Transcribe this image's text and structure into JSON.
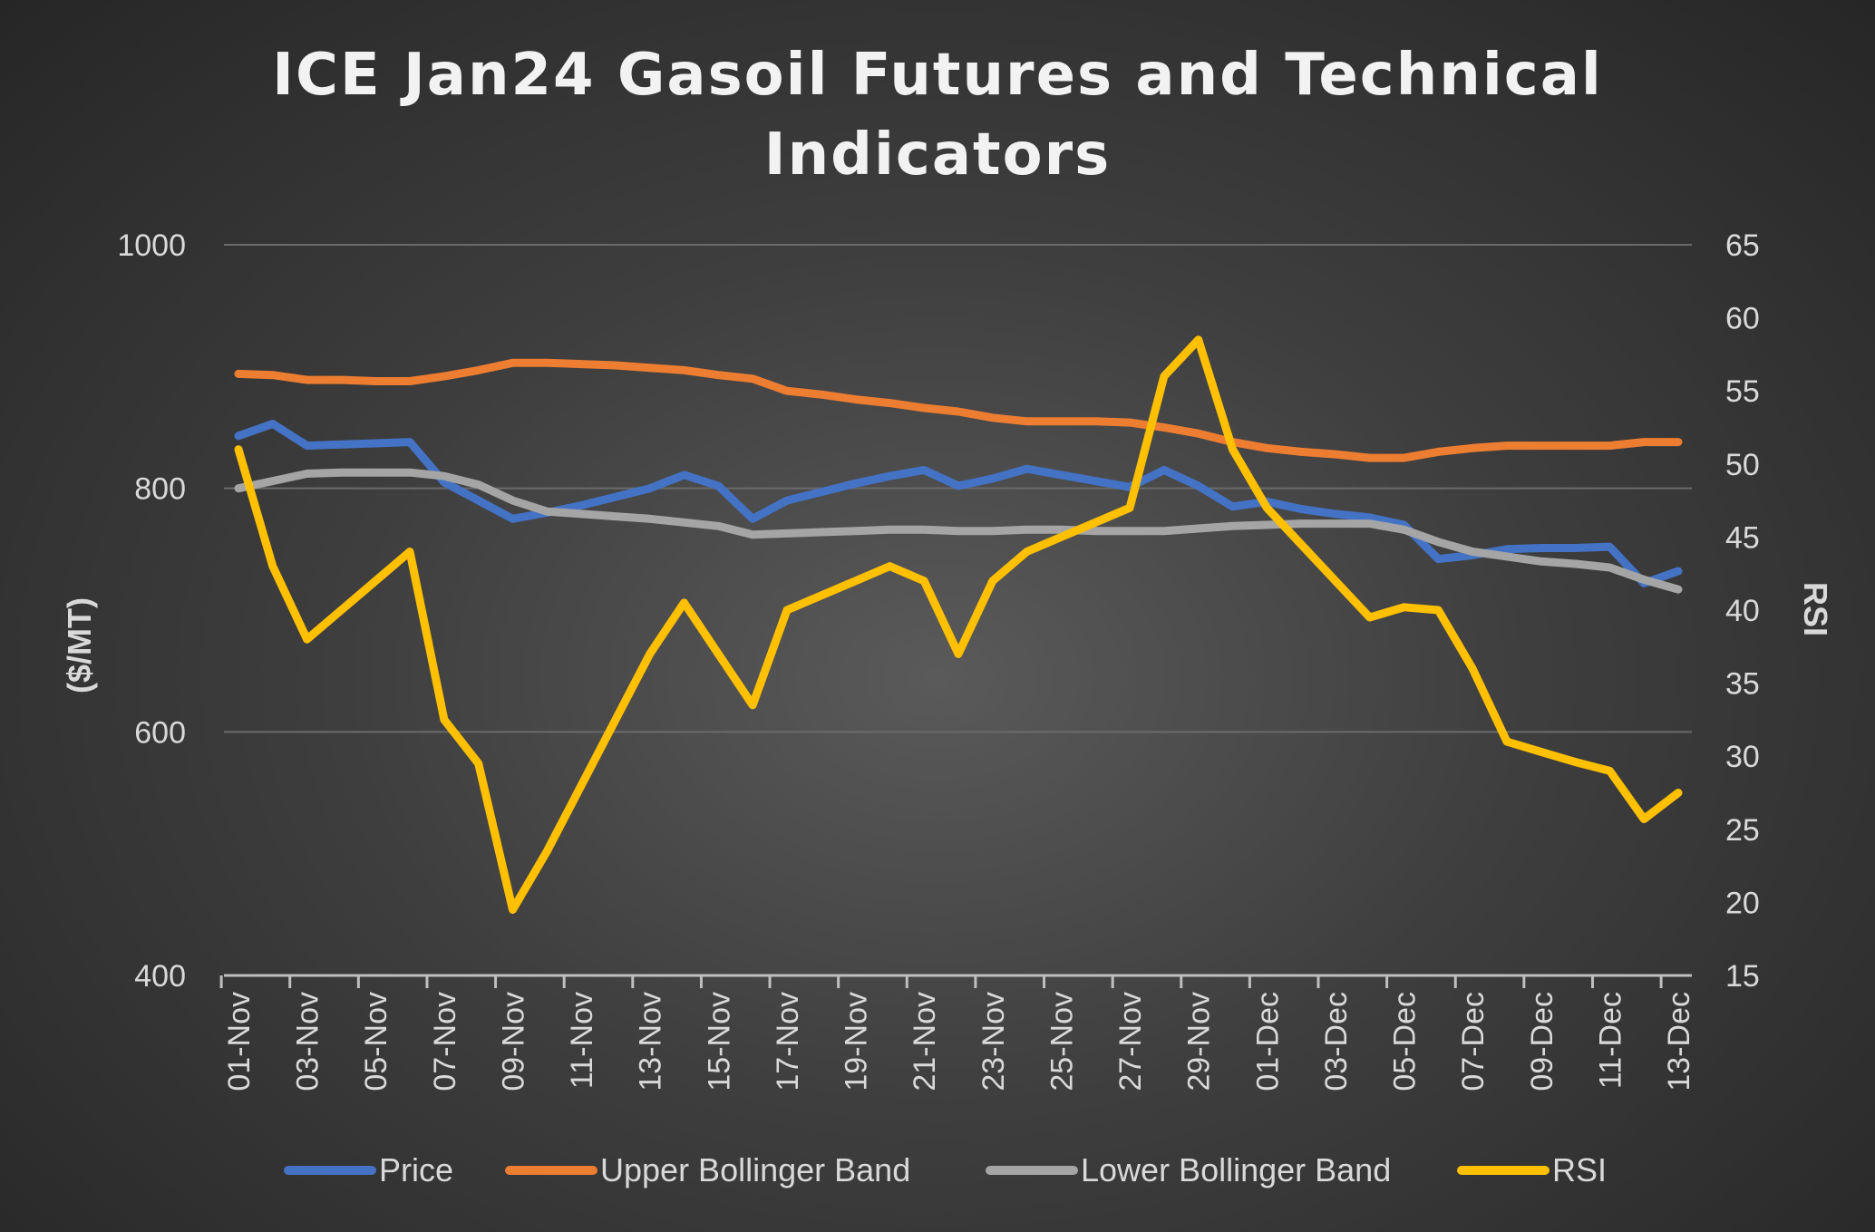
{
  "chart_data": {
    "type": "line",
    "title": "ICE Jan24 Gasoil Futures and Technical Indicators",
    "ylabel": "($/MT)",
    "y2label": "RSI",
    "ylim": [
      400,
      1000
    ],
    "y2lim": [
      15,
      65
    ],
    "yticks": [
      400,
      600,
      800,
      1000
    ],
    "y2ticks": [
      15,
      20,
      25,
      30,
      35,
      40,
      45,
      50,
      55,
      60,
      65
    ],
    "grid": true,
    "legend_position": "bottom",
    "x": [
      "01-Nov",
      "02-Nov",
      "03-Nov",
      "04-Nov",
      "05-Nov",
      "06-Nov",
      "07-Nov",
      "08-Nov",
      "09-Nov",
      "10-Nov",
      "11-Nov",
      "12-Nov",
      "13-Nov",
      "14-Nov",
      "15-Nov",
      "16-Nov",
      "17-Nov",
      "18-Nov",
      "19-Nov",
      "20-Nov",
      "21-Nov",
      "22-Nov",
      "23-Nov",
      "24-Nov",
      "25-Nov",
      "26-Nov",
      "27-Nov",
      "28-Nov",
      "29-Nov",
      "30-Nov",
      "01-Dec",
      "02-Dec",
      "03-Dec",
      "04-Dec",
      "05-Dec",
      "06-Dec",
      "07-Dec",
      "08-Dec",
      "09-Dec",
      "10-Dec",
      "11-Dec",
      "12-Dec",
      "13-Dec"
    ],
    "x_tick_labels": [
      "01-Nov",
      "03-Nov",
      "05-Nov",
      "07-Nov",
      "09-Nov",
      "11-Nov",
      "13-Nov",
      "15-Nov",
      "17-Nov",
      "19-Nov",
      "21-Nov",
      "23-Nov",
      "25-Nov",
      "27-Nov",
      "29-Nov",
      "01-Dec",
      "03-Dec",
      "05-Dec",
      "07-Dec",
      "09-Dec",
      "11-Dec",
      "13-Dec"
    ],
    "series": [
      {
        "name": "Price",
        "axis": "left",
        "color": "#4472C4",
        "values": [
          843,
          853,
          835,
          836,
          837,
          838,
          805,
          790,
          775,
          780,
          786,
          793,
          800,
          811,
          802,
          775,
          790,
          797,
          804,
          810,
          815,
          802,
          808,
          816,
          811,
          806,
          801,
          815,
          802,
          785,
          789,
          783,
          779,
          776,
          770,
          742,
          745,
          750,
          751,
          751,
          752,
          722,
          732
        ]
      },
      {
        "name": "Upper Bollinger Band",
        "axis": "left",
        "color": "#ED7D31",
        "values": [
          894,
          893,
          889,
          889,
          888,
          888,
          892,
          897,
          903,
          903,
          902,
          901,
          899,
          897,
          893,
          890,
          880,
          877,
          873,
          870,
          866,
          863,
          858,
          855,
          855,
          855,
          854,
          850,
          845,
          838,
          833,
          830,
          828,
          825,
          825,
          830,
          833,
          835,
          835,
          835,
          835,
          838,
          838
        ]
      },
      {
        "name": "Lower Bollinger Band",
        "axis": "left",
        "color": "#A5A5A5",
        "values": [
          800,
          806,
          812,
          813,
          813,
          813,
          810,
          803,
          790,
          781,
          779,
          777,
          775,
          772,
          769,
          762,
          763,
          764,
          765,
          766,
          766,
          765,
          765,
          766,
          766,
          765,
          765,
          765,
          767,
          769,
          770,
          771,
          771,
          771,
          766,
          756,
          748,
          744,
          740,
          738,
          735,
          725,
          717
        ]
      },
      {
        "name": "RSI",
        "axis": "right",
        "color": "#FFC000",
        "values": [
          51,
          43,
          38,
          40,
          42,
          44,
          32.5,
          29.5,
          19.5,
          23.5,
          28,
          32.5,
          37,
          40.5,
          37,
          33.5,
          40,
          41,
          42,
          43,
          42,
          37,
          42,
          44,
          45,
          46,
          47,
          56,
          58.5,
          51,
          47,
          44.5,
          42,
          39.5,
          40.2,
          40,
          36,
          31,
          30.3,
          29.6,
          29,
          25.7,
          27.5
        ]
      }
    ]
  }
}
